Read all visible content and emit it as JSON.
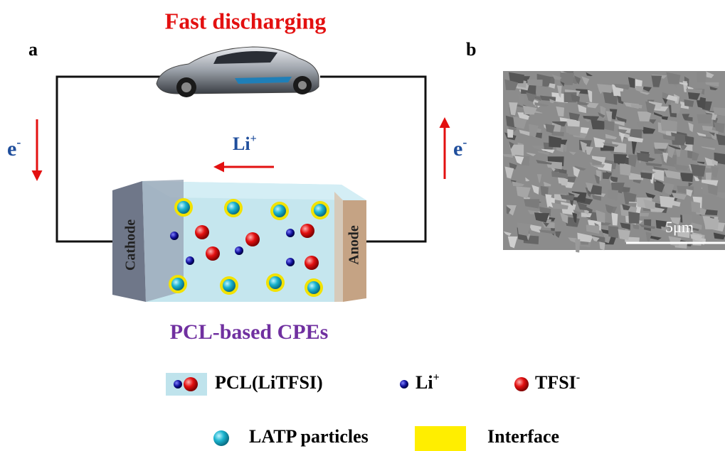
{
  "panel_a": {
    "label": "a",
    "title": "Fast discharging",
    "electron_left": {
      "base": "e",
      "sup": "-"
    },
    "electron_right": {
      "base": "e",
      "sup": "-"
    },
    "ion_flow": {
      "base": "Li",
      "sup": "+"
    },
    "cathode": "Cathode",
    "anode": "Anode",
    "caption": "PCL-based CPEs"
  },
  "panel_b": {
    "label": "b",
    "scale_bar": "5μm"
  },
  "legend": [
    {
      "label": "PCL(LiTFSI)"
    },
    {
      "label": {
        "base": "Li",
        "sup": "+"
      }
    },
    {
      "label": {
        "base": "TFSI",
        "sup": "-"
      }
    },
    {
      "label": "LATP particles"
    },
    {
      "label": "Interface"
    }
  ]
}
